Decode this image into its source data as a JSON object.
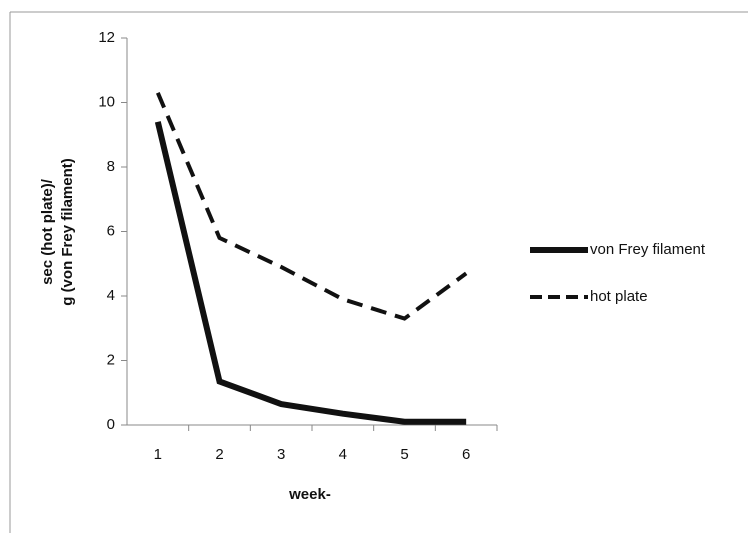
{
  "chart_data": {
    "type": "line",
    "categories": [
      "1",
      "2",
      "3",
      "4",
      "5",
      "6"
    ],
    "series": [
      {
        "name": "von Frey filament",
        "color": "#111111",
        "style": "solid",
        "values": [
          9.4,
          1.35,
          0.65,
          0.35,
          0.1,
          0.1
        ]
      },
      {
        "name": "hot plate",
        "color": "#111111",
        "style": "dashed",
        "values": [
          10.3,
          5.8,
          4.9,
          3.9,
          3.3,
          4.7
        ]
      }
    ],
    "ylim": [
      0,
      12
    ],
    "yticks": [
      0,
      2,
      4,
      6,
      8,
      10,
      12
    ],
    "y_label": [
      "sec (hot plate)/",
      "g (von Frey filament)"
    ],
    "x_label": "week-",
    "legend": "right"
  }
}
